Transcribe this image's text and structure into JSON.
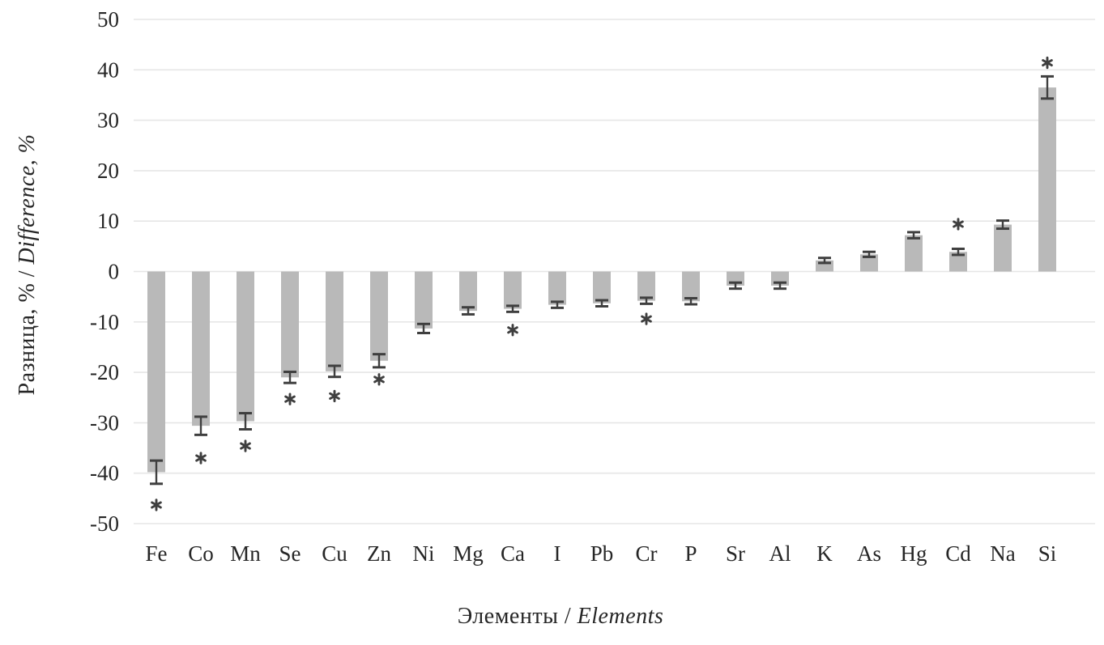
{
  "figure": {
    "background": "#ffffff"
  },
  "axes": {
    "y_title_ru": "Разница, % / ",
    "y_title_en": "Difference, %",
    "x_title_ru": "Элементы / ",
    "x_title_en": "Elements"
  },
  "icons": {
    "significance_marker": "asterisk-icon"
  },
  "chart_data": {
    "type": "bar",
    "title": "",
    "xlabel": "Элементы / Elements",
    "ylabel": "Разница, % / Difference, %",
    "ylim": [
      -50,
      50
    ],
    "yticks": [
      50,
      40,
      30,
      20,
      10,
      0,
      -10,
      -20,
      -30,
      -40,
      -50
    ],
    "grid": true,
    "legend": "none",
    "categories": [
      "Fe",
      "Co",
      "Mn",
      "Se",
      "Cu",
      "Zn",
      "Ni",
      "Mg",
      "Ca",
      "I",
      "Pb",
      "Cr",
      "P",
      "Sr",
      "Al",
      "K",
      "As",
      "Hg",
      "Cd",
      "Na",
      "Si"
    ],
    "values": [
      -39.8,
      -30.6,
      -29.7,
      -21.0,
      -19.8,
      -17.7,
      -11.3,
      -7.8,
      -7.4,
      -6.6,
      -6.3,
      -5.8,
      -5.9,
      -2.8,
      -2.8,
      2.2,
      3.4,
      7.2,
      3.9,
      9.3,
      36.5
    ],
    "error": [
      2.3,
      1.8,
      1.6,
      1.1,
      1.1,
      1.3,
      0.9,
      0.7,
      0.6,
      0.6,
      0.6,
      0.6,
      0.6,
      0.6,
      0.6,
      0.5,
      0.5,
      0.6,
      0.6,
      0.8,
      2.2
    ],
    "asterisk_at": [
      -46.3,
      -37.0,
      -34.6,
      -25.3,
      -24.7,
      -21.4,
      null,
      null,
      -11.6,
      null,
      null,
      -9.4,
      null,
      null,
      null,
      null,
      null,
      null,
      9.4,
      null,
      41.4
    ],
    "colors": {
      "bar": "#b9b9b9",
      "error_bar": "#3f3f3f",
      "asterisk": "#3f3f3f",
      "gridline": "#e6e6e6",
      "text": "#262626"
    }
  }
}
